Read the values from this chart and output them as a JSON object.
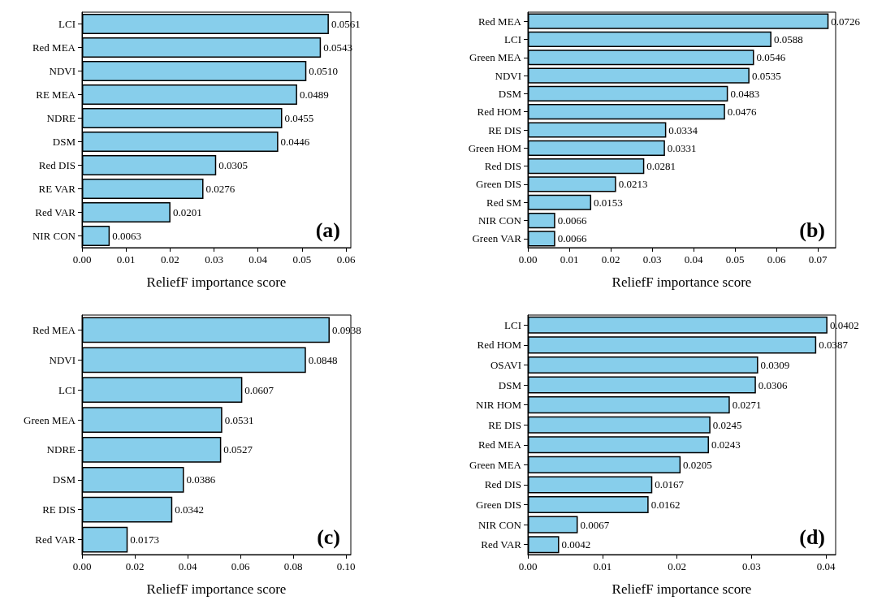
{
  "chart_data": [
    {
      "type": "bar",
      "orientation": "horizontal",
      "categories": [
        "LCI",
        "Red MEA",
        "NDVI",
        "RE MEA",
        "NDRE",
        "DSM",
        "Red DIS",
        "RE VAR",
        "Red VAR",
        "NIR CON"
      ],
      "values": [
        0.0561,
        0.0543,
        0.051,
        0.0489,
        0.0455,
        0.0446,
        0.0305,
        0.0276,
        0.0201,
        0.0063
      ],
      "value_labels": [
        "0.0561",
        "0.0543",
        "0.0510",
        "0.0489",
        "0.0455",
        "0.0446",
        "0.0305",
        "0.0276",
        "0.0201",
        "0.0063"
      ],
      "color": "#87ceeb",
      "xlim": [
        0,
        0.0611
      ],
      "xticks": [
        {
          "value": 0,
          "label": "0.00"
        },
        {
          "value": 0.01,
          "label": "0.01"
        },
        {
          "value": 0.02,
          "label": "0.02"
        },
        {
          "value": 0.03,
          "label": "0.03"
        },
        {
          "value": 0.04,
          "label": "0.04"
        },
        {
          "value": 0.05,
          "label": "0.05"
        },
        {
          "value": 0.06,
          "label": "0.06"
        }
      ],
      "xlabel": "ReliefF importance score",
      "annotations": [
        "(a)"
      ],
      "grid": false
    },
    {
      "type": "bar",
      "orientation": "horizontal",
      "categories": [
        "Red MEA",
        "LCI",
        "Green MEA",
        "NDVI",
        "DSM",
        "Red HOM",
        "RE DIS",
        "Green HOM",
        "Red DIS",
        "Green DIS",
        "Red SM",
        "NIR CON",
        "Green VAR"
      ],
      "values": [
        0.0726,
        0.0588,
        0.0546,
        0.0535,
        0.0483,
        0.0476,
        0.0334,
        0.0331,
        0.0281,
        0.0213,
        0.0153,
        0.0066,
        0.0066
      ],
      "value_labels": [
        "0.0726",
        "0.0588",
        "0.0546",
        "0.0535",
        "0.0483",
        "0.0476",
        "0.0334",
        "0.0331",
        "0.0281",
        "0.0213",
        "0.0153",
        "0.0066",
        "0.0066"
      ],
      "color": "#87ceeb",
      "xlim": [
        0,
        0.0743
      ],
      "xticks": [
        {
          "value": 0,
          "label": "0.00"
        },
        {
          "value": 0.01,
          "label": "0.01"
        },
        {
          "value": 0.02,
          "label": "0.02"
        },
        {
          "value": 0.03,
          "label": "0.03"
        },
        {
          "value": 0.04,
          "label": "0.04"
        },
        {
          "value": 0.05,
          "label": "0.05"
        },
        {
          "value": 0.06,
          "label": "0.06"
        },
        {
          "value": 0.07,
          "label": "0.07"
        }
      ],
      "xlabel": "ReliefF importance score",
      "annotations": [
        "(b)"
      ],
      "grid": false
    },
    {
      "type": "bar",
      "orientation": "horizontal",
      "categories": [
        "Red MEA",
        "NDVI",
        "LCI",
        "Green MEA",
        "NDRE",
        "DSM",
        "RE DIS",
        "Red VAR"
      ],
      "values": [
        0.0938,
        0.0848,
        0.0607,
        0.0531,
        0.0527,
        0.0386,
        0.0342,
        0.0173
      ],
      "value_labels": [
        "0.0938",
        "0.0848",
        "0.0607",
        "0.0531",
        "0.0527",
        "0.0386",
        "0.0342",
        "0.0173"
      ],
      "color": "#87ceeb",
      "xlim": [
        0,
        0.1018
      ],
      "xticks": [
        {
          "value": 0,
          "label": "0.00"
        },
        {
          "value": 0.02,
          "label": "0.02"
        },
        {
          "value": 0.04,
          "label": "0.04"
        },
        {
          "value": 0.06,
          "label": "0.06"
        },
        {
          "value": 0.08,
          "label": "0.08"
        },
        {
          "value": 0.1,
          "label": "0.10"
        }
      ],
      "xlabel": "ReliefF importance score",
      "annotations": [
        "(c)"
      ],
      "grid": false
    },
    {
      "type": "bar",
      "orientation": "horizontal",
      "categories": [
        "LCI",
        "Red HOM",
        "OSAVI",
        "DSM",
        "NIR HOM",
        "RE DIS",
        "Red MEA",
        "Green MEA",
        "Red DIS",
        "Green DIS",
        "NIR CON",
        "Red VAR"
      ],
      "values": [
        0.0402,
        0.0387,
        0.0309,
        0.0306,
        0.0271,
        0.0245,
        0.0243,
        0.0205,
        0.0167,
        0.0162,
        0.0067,
        0.0042
      ],
      "value_labels": [
        "0.0402",
        "0.0387",
        "0.0309",
        "0.0306",
        "0.0271",
        "0.0245",
        "0.0243",
        "0.0205",
        "0.0167",
        "0.0162",
        "0.0067",
        "0.0042"
      ],
      "color": "#87ceeb",
      "xlim": [
        0,
        0.0413
      ],
      "xticks": [
        {
          "value": 0,
          "label": "0.00"
        },
        {
          "value": 0.01,
          "label": "0.01"
        },
        {
          "value": 0.02,
          "label": "0.02"
        },
        {
          "value": 0.03,
          "label": "0.03"
        },
        {
          "value": 0.04,
          "label": "0.04"
        }
      ],
      "xlabel": "ReliefF importance score",
      "annotations": [
        "(d)"
      ],
      "grid": false
    }
  ]
}
